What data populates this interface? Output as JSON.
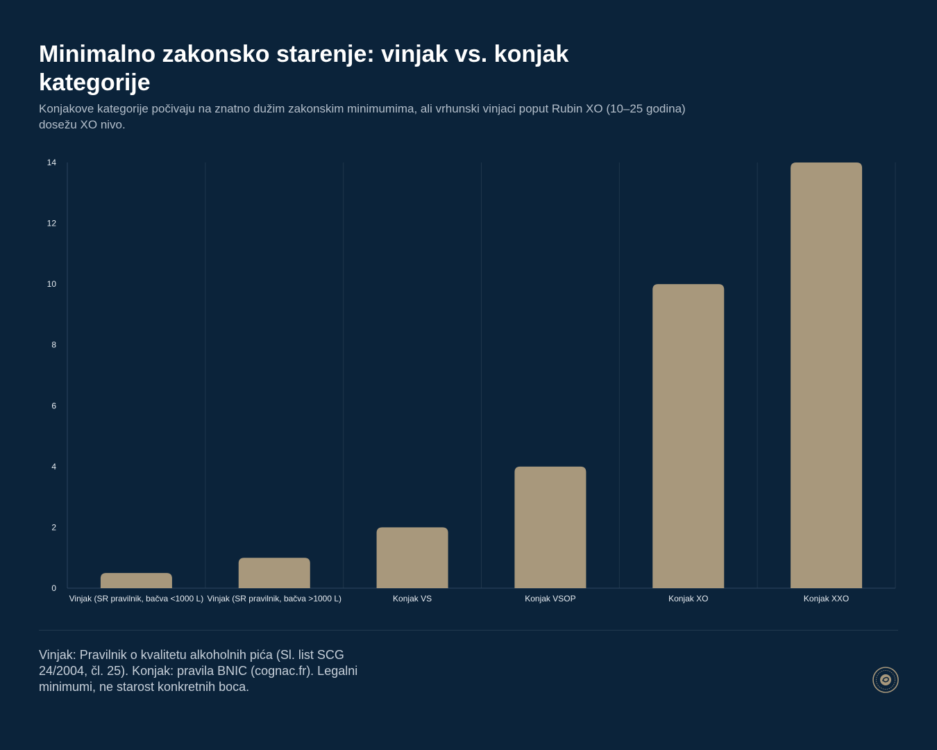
{
  "title": "Minimalno zakonsko starenje: vinjak vs. konjak kategorije",
  "subtitle": "Konjakove kategorije počivaju na znatno dužim zakonskim minimumima, ali vrhunski vinjaci poput Rubin XO (10–25 godina) dosežu XO nivo.",
  "footnote": "Vinjak: Pravilnik o kvalitetu alkoholnih pića (Sl. list SCG 24/2004, čl. 25). Konjak: pravila BNIC (cognac.fr). Legalni minimumi, ne starost konkretnih boca.",
  "colors": {
    "background": "#0b233a",
    "bar": "#a8987c",
    "grid": "#1f364c",
    "axis": "#2d4560",
    "tick_text": "#e8edf2"
  },
  "logo_icon": "round-seal-logo",
  "chart_data": {
    "type": "bar",
    "categories": [
      "Vinjak (SR pravilnik, bačva <1000 L)",
      "Vinjak (SR pravilnik, bačva >1000 L)",
      "Konjak VS",
      "Konjak VSOP",
      "Konjak XO",
      "Konjak XXO"
    ],
    "values": [
      0.5,
      1,
      2,
      4,
      10,
      14
    ],
    "yticks": [
      0,
      2,
      4,
      6,
      8,
      10,
      12,
      14
    ],
    "ylim": [
      0,
      14
    ],
    "xlabel": "",
    "ylabel": "",
    "grid": "vertical"
  }
}
